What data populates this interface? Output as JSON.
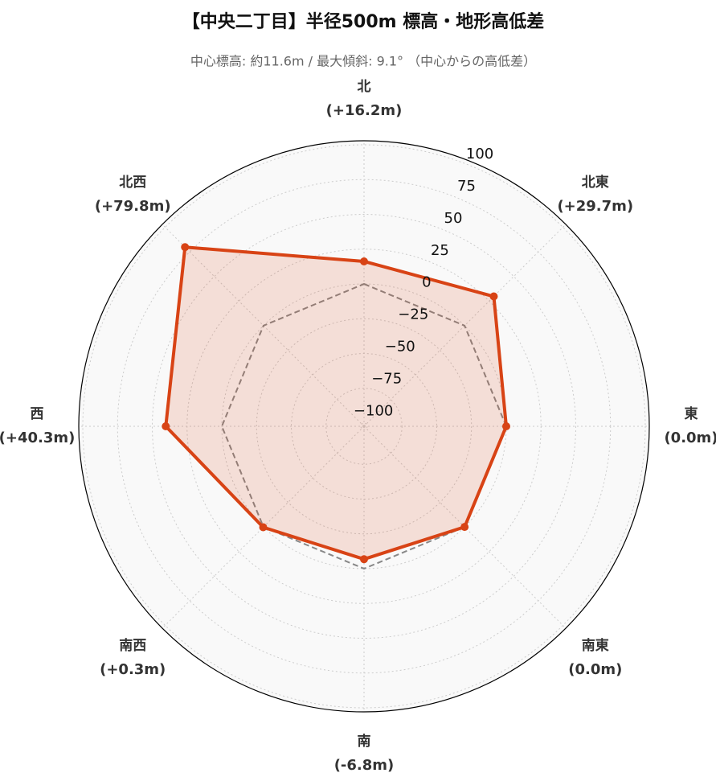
{
  "chart_data": {
    "type": "radar",
    "title": "【中央二丁目】半径500m 標高・地形高低差",
    "subtitle": "中心標高: 約11.6m / 最大傾斜: 9.1° （中心からの高低差）",
    "categories": [
      "北",
      "北東",
      "東",
      "南東",
      "南",
      "南西",
      "西",
      "北西"
    ],
    "values": [
      16.2,
      29.7,
      0.0,
      0.0,
      -6.8,
      0.3,
      40.3,
      79.8
    ],
    "value_labels": [
      "(+16.2m)",
      "(+29.7m)",
      "(0.0m)",
      "(0.0m)",
      "(-6.8m)",
      "(+0.3m)",
      "(+40.3m)",
      "(+79.8m)"
    ],
    "color": "#d84315",
    "baseline": {
      "value": 0,
      "color": "#888888"
    },
    "ylim": [
      -102.3,
      102.9
    ],
    "yticks": [
      {
        "value": -100,
        "label": "−100"
      },
      {
        "value": -75,
        "label": "−75"
      },
      {
        "value": -50,
        "label": "−50"
      },
      {
        "value": -25,
        "label": "−25"
      },
      0,
      25,
      50,
      75,
      100
    ],
    "grid": true
  }
}
